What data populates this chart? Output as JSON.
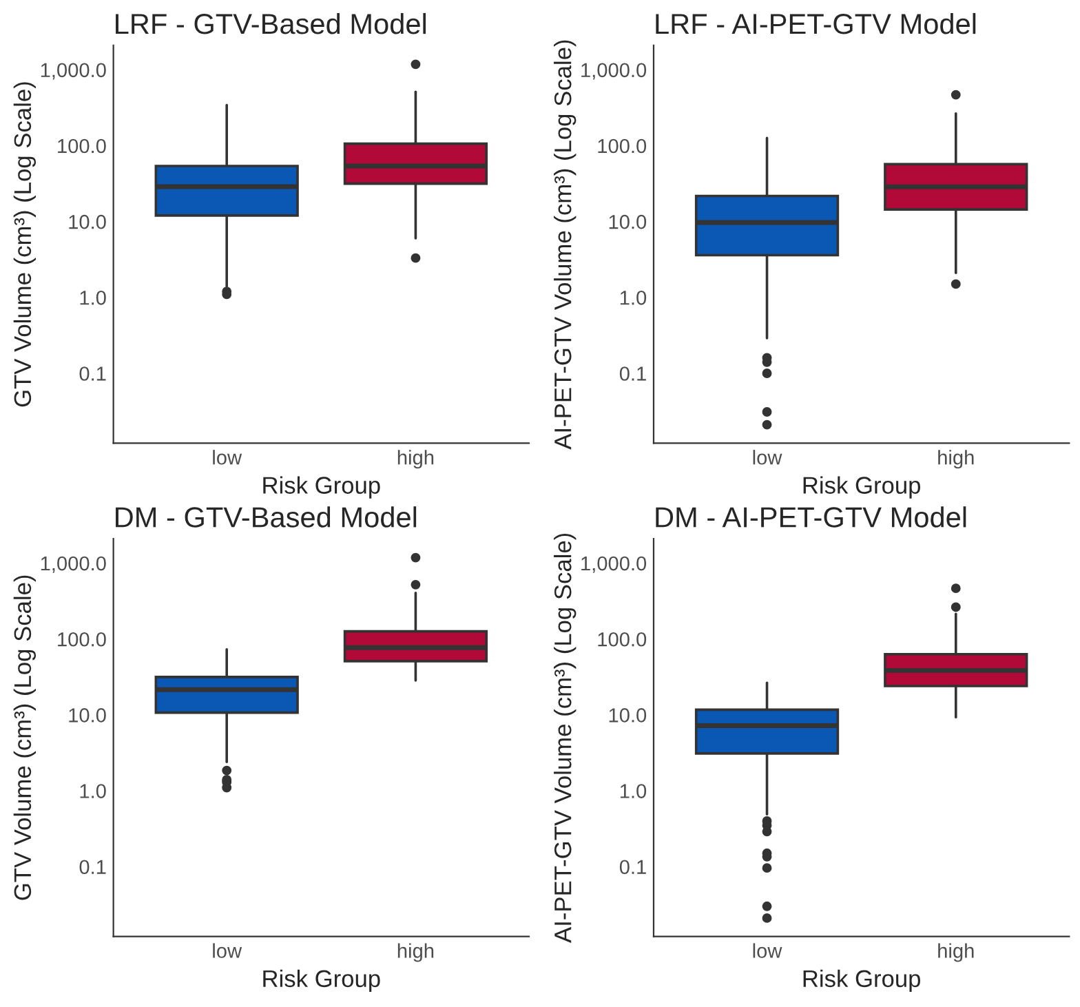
{
  "chart_data": [
    {
      "type": "box",
      "title": "LRF - GTV-Based Model",
      "xlabel": "Risk Group",
      "ylabel": "GTV Volume (cm³) (Log Scale)",
      "categories": [
        "low",
        "high"
      ],
      "colors": [
        "#0a58b4",
        "#b10a38"
      ],
      "log": true,
      "grid": false,
      "ylim": [
        0.012,
        2100
      ],
      "yticks": [
        {
          "value": 0.1,
          "label": "0.1"
        },
        {
          "value": 1,
          "label": "1.0"
        },
        {
          "value": 10,
          "label": "10.0"
        },
        {
          "value": 100,
          "label": "100.0"
        },
        {
          "value": 1000,
          "label": "1,000.0"
        }
      ],
      "boxes": [
        {
          "low": 1.4,
          "q1": 12,
          "median": 28.8,
          "q3": 54,
          "high": 343,
          "outliers": [
            1.2,
            1.1
          ]
        },
        {
          "low": 6.0,
          "q1": 31.6,
          "median": 54,
          "q3": 106,
          "high": 513,
          "outliers": [
            1180,
            3.3
          ]
        }
      ]
    },
    {
      "type": "box",
      "title": "LRF - AI-PET-GTV Model",
      "xlabel": "Risk Group",
      "ylabel": "AI-PET-GTV Volume (cm³) (Log Scale)",
      "categories": [
        "low",
        "high"
      ],
      "colors": [
        "#0a58b4",
        "#b10a38"
      ],
      "log": true,
      "grid": false,
      "ylim": [
        0.012,
        2100
      ],
      "yticks": [
        {
          "value": 0.1,
          "label": "0.1"
        },
        {
          "value": 1,
          "label": "1.0"
        },
        {
          "value": 10,
          "label": "10.0"
        },
        {
          "value": 100,
          "label": "100.0"
        },
        {
          "value": 1000,
          "label": "1,000.0"
        }
      ],
      "boxes": [
        {
          "low": 0.29,
          "q1": 3.6,
          "median": 9.7,
          "q3": 21.7,
          "high": 126,
          "outliers": [
            0.16,
            0.14,
            0.1,
            0.031,
            0.021
          ]
        },
        {
          "low": 2.1,
          "q1": 14.4,
          "median": 28.7,
          "q3": 57,
          "high": 265,
          "outliers": [
            468,
            1.5
          ]
        }
      ]
    },
    {
      "type": "box",
      "title": "DM - GTV-Based Model",
      "xlabel": "Risk Group",
      "ylabel": "GTV Volume (cm³) (Log Scale)",
      "categories": [
        "low",
        "high"
      ],
      "colors": [
        "#0a58b4",
        "#b10a38"
      ],
      "log": true,
      "grid": false,
      "ylim": [
        0.012,
        2100
      ],
      "yticks": [
        {
          "value": 0.1,
          "label": "0.1"
        },
        {
          "value": 1,
          "label": "1.0"
        },
        {
          "value": 10,
          "label": "10.0"
        },
        {
          "value": 100,
          "label": "100.0"
        },
        {
          "value": 1000,
          "label": "1,000.0"
        }
      ],
      "boxes": [
        {
          "low": 2.4,
          "q1": 10.7,
          "median": 21.5,
          "q3": 31.6,
          "high": 73,
          "outliers": [
            1.85,
            1.4,
            1.3,
            1.1
          ]
        },
        {
          "low": 28.4,
          "q1": 51,
          "median": 77,
          "q3": 126,
          "high": 405,
          "outliers": [
            1180,
            520
          ]
        }
      ]
    },
    {
      "type": "box",
      "title": "DM - AI-PET-GTV Model",
      "xlabel": "Risk Group",
      "ylabel": "AI-PET-GTV Volume (cm³) (Log Scale)",
      "categories": [
        "low",
        "high"
      ],
      "colors": [
        "#0a58b4",
        "#b10a38"
      ],
      "log": true,
      "grid": false,
      "ylim": [
        0.012,
        2100
      ],
      "yticks": [
        {
          "value": 0.1,
          "label": "0.1"
        },
        {
          "value": 1,
          "label": "1.0"
        },
        {
          "value": 10,
          "label": "10.0"
        },
        {
          "value": 100,
          "label": "100.0"
        },
        {
          "value": 1000,
          "label": "1,000.0"
        }
      ],
      "boxes": [
        {
          "low": 0.49,
          "q1": 3.1,
          "median": 7.2,
          "q3": 11.7,
          "high": 26.5,
          "outliers": [
            0.4,
            0.35,
            0.29,
            0.15,
            0.135,
            0.096,
            0.03,
            0.021
          ]
        },
        {
          "low": 9.3,
          "q1": 24,
          "median": 38.5,
          "q3": 63,
          "high": 214,
          "outliers": [
            465,
            263
          ]
        }
      ]
    }
  ]
}
